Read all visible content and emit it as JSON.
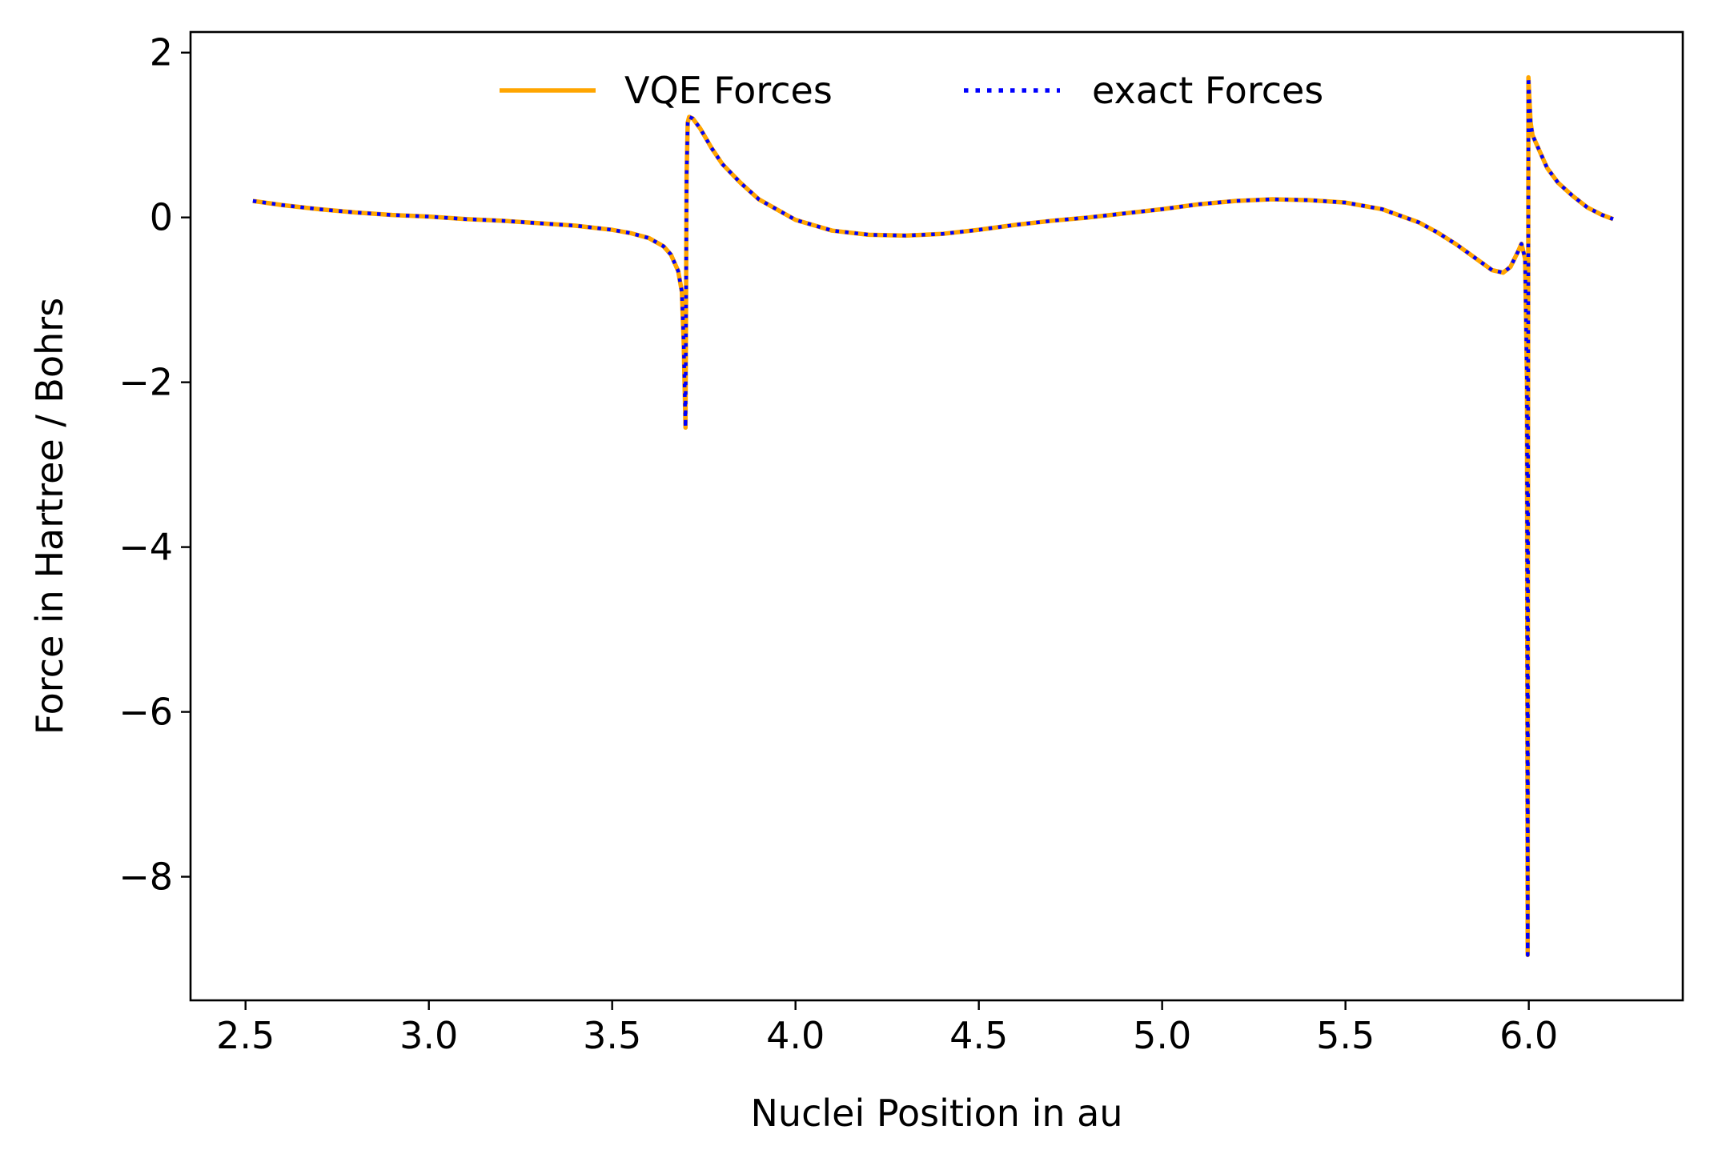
{
  "chart_data": {
    "type": "line",
    "title": "",
    "xlabel": "Nuclei Position in au",
    "ylabel": "Force in Hartree / Bohrs",
    "xlim": [
      2.35,
      6.42
    ],
    "ylim": [
      -9.5,
      2.25
    ],
    "xticks": [
      2.5,
      3.0,
      3.5,
      4.0,
      4.5,
      5.0,
      5.5,
      6.0
    ],
    "xtick_labels": [
      "2.5",
      "3.0",
      "3.5",
      "4.0",
      "4.5",
      "5.0",
      "5.5",
      "6.0"
    ],
    "yticks": [
      2,
      0,
      -2,
      -4,
      -6,
      -8
    ],
    "ytick_labels": [
      "2",
      "0",
      "−2",
      "−4",
      "−6",
      "−8"
    ],
    "grid": false,
    "legend_position": "top-center",
    "series": [
      {
        "name": "VQE Forces",
        "color": "#FFA500",
        "style": "solid",
        "x": [
          2.52,
          2.6,
          2.7,
          2.8,
          2.9,
          3.0,
          3.1,
          3.2,
          3.3,
          3.4,
          3.5,
          3.55,
          3.6,
          3.64,
          3.66,
          3.68,
          3.69,
          3.695,
          3.7,
          3.703,
          3.706,
          3.71,
          3.72,
          3.74,
          3.77,
          3.8,
          3.85,
          3.9,
          4.0,
          4.1,
          4.2,
          4.3,
          4.4,
          4.5,
          4.6,
          4.7,
          4.8,
          4.9,
          5.0,
          5.1,
          5.2,
          5.3,
          5.4,
          5.5,
          5.6,
          5.7,
          5.75,
          5.8,
          5.85,
          5.9,
          5.93,
          5.95,
          5.97,
          5.98,
          5.99,
          5.995,
          5.997,
          5.999,
          6.001,
          6.005,
          6.01,
          6.03,
          6.05,
          6.08,
          6.12,
          6.16,
          6.2,
          6.23
        ],
        "y": [
          0.2,
          0.15,
          0.1,
          0.06,
          0.03,
          0.01,
          -0.02,
          -0.04,
          -0.07,
          -0.1,
          -0.15,
          -0.19,
          -0.25,
          -0.35,
          -0.45,
          -0.65,
          -0.9,
          -1.5,
          -2.55,
          0.5,
          1.15,
          1.22,
          1.2,
          1.08,
          0.85,
          0.65,
          0.42,
          0.22,
          -0.03,
          -0.16,
          -0.21,
          -0.22,
          -0.2,
          -0.15,
          -0.09,
          -0.04,
          0.0,
          0.05,
          0.1,
          0.16,
          0.2,
          0.22,
          0.21,
          0.18,
          0.1,
          -0.06,
          -0.18,
          -0.32,
          -0.48,
          -0.64,
          -0.67,
          -0.6,
          -0.42,
          -0.32,
          -0.5,
          -2.0,
          -8.95,
          1.7,
          1.5,
          1.15,
          1.0,
          0.8,
          0.6,
          0.42,
          0.26,
          0.12,
          0.03,
          -0.02
        ]
      },
      {
        "name": "exact Forces",
        "color": "#0000FF",
        "style": "dotted",
        "x": [
          2.52,
          2.6,
          2.7,
          2.8,
          2.9,
          3.0,
          3.1,
          3.2,
          3.3,
          3.4,
          3.5,
          3.55,
          3.6,
          3.64,
          3.66,
          3.68,
          3.69,
          3.695,
          3.7,
          3.703,
          3.706,
          3.71,
          3.72,
          3.74,
          3.77,
          3.8,
          3.85,
          3.9,
          4.0,
          4.1,
          4.2,
          4.3,
          4.4,
          4.5,
          4.6,
          4.7,
          4.8,
          4.9,
          5.0,
          5.1,
          5.2,
          5.3,
          5.4,
          5.5,
          5.6,
          5.7,
          5.75,
          5.8,
          5.85,
          5.9,
          5.93,
          5.95,
          5.97,
          5.98,
          5.99,
          5.995,
          5.997,
          5.999,
          6.001,
          6.005,
          6.01,
          6.03,
          6.05,
          6.08,
          6.12,
          6.16,
          6.2,
          6.23
        ],
        "y": [
          0.2,
          0.15,
          0.1,
          0.06,
          0.03,
          0.01,
          -0.02,
          -0.04,
          -0.07,
          -0.1,
          -0.15,
          -0.19,
          -0.25,
          -0.35,
          -0.45,
          -0.65,
          -0.9,
          -1.5,
          -2.55,
          0.5,
          1.15,
          1.22,
          1.2,
          1.08,
          0.85,
          0.65,
          0.42,
          0.22,
          -0.03,
          -0.16,
          -0.21,
          -0.22,
          -0.2,
          -0.15,
          -0.09,
          -0.04,
          0.0,
          0.05,
          0.1,
          0.16,
          0.2,
          0.22,
          0.21,
          0.18,
          0.1,
          -0.06,
          -0.18,
          -0.32,
          -0.48,
          -0.64,
          -0.67,
          -0.6,
          -0.42,
          -0.32,
          -0.5,
          -2.0,
          -8.95,
          1.7,
          1.5,
          1.15,
          1.0,
          0.8,
          0.6,
          0.42,
          0.26,
          0.12,
          0.03,
          -0.02
        ]
      }
    ]
  }
}
